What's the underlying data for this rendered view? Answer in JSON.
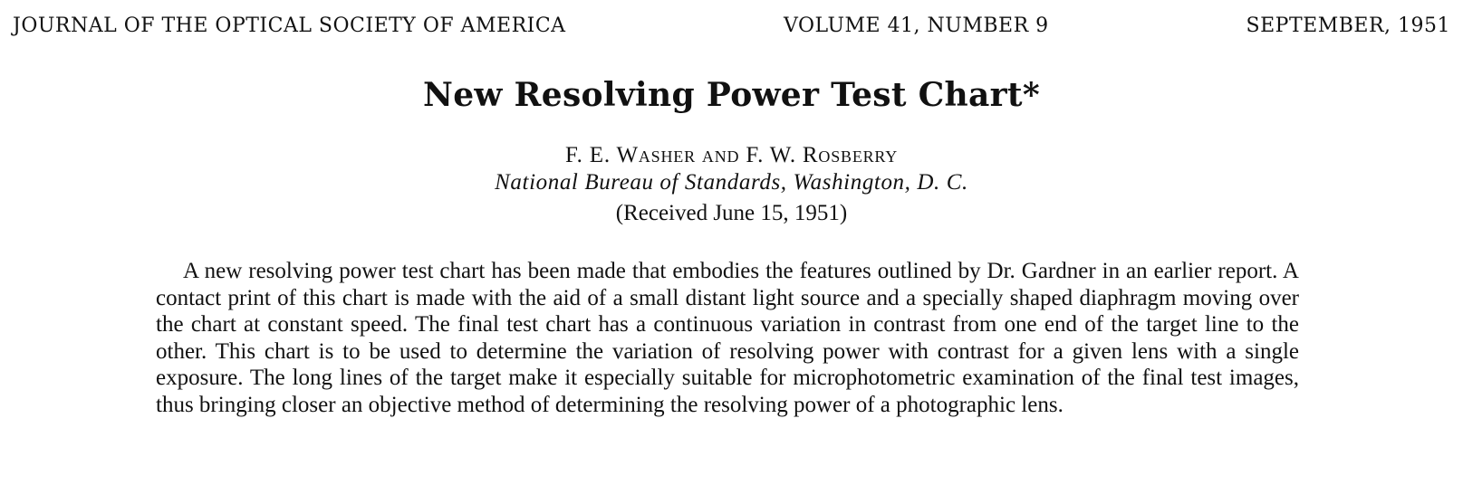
{
  "running_head": {
    "journal": "JOURNAL OF THE OPTICAL SOCIETY OF AMERICA",
    "volume": "VOLUME 41, NUMBER 9",
    "date": "SEPTEMBER, 1951"
  },
  "article": {
    "title": "New Resolving Power Test Chart*",
    "authors": "F. E. Washer and F. W. Rosberry",
    "affiliation": "National Bureau of Standards, Washington, D. C.",
    "received": "(Received June 15, 1951)",
    "abstract": "A new resolving power test chart has been made that embodies the features outlined by Dr. Gardner in an earlier report. A contact print of this chart is made with the aid of a small distant light source and a specially shaped diaphragm moving over the chart at constant speed. The final test chart has a continuous variation in contrast from one end of the target line to the other. This chart is to be used to determine the variation of resolving power with contrast for a given lens with a single exposure. The long lines of the target make it especially suitable for microphotometric examination of the final test images, thus bringing closer an objective method of determining the resolving power of a photographic lens."
  }
}
